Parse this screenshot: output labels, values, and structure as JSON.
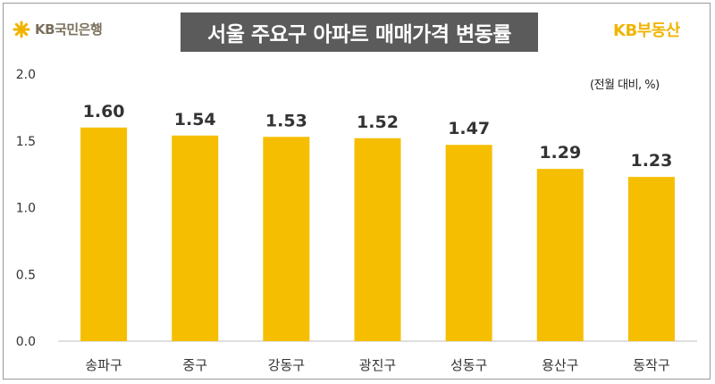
{
  "header": {
    "bank_logo_text": "KB국민은행",
    "title": "서울 주요구 아파트 매매가격 변동률",
    "brand_right": "KB부동산",
    "unit_note": "(전월 대비, %)"
  },
  "colors": {
    "bar": "#F6BE00",
    "title_bg": "#5B5B5B",
    "brand": "#F0B400",
    "axis": "#BFBFBF"
  },
  "icons": {
    "bank_logo": "kb-star-icon"
  },
  "chart_data": {
    "type": "bar",
    "title": "서울 주요구 아파트 매매가격 변동률",
    "unit": "(전월 대비, %)",
    "categories": [
      "송파구",
      "중구",
      "강동구",
      "광진구",
      "성동구",
      "용산구",
      "동작구"
    ],
    "values": [
      1.6,
      1.54,
      1.53,
      1.52,
      1.47,
      1.29,
      1.23
    ],
    "data_labels": [
      "1.60",
      "1.54",
      "1.53",
      "1.52",
      "1.47",
      "1.29",
      "1.23"
    ],
    "ylim": [
      0,
      2.0
    ],
    "yticks": [
      "0.0",
      "0.5",
      "1.0",
      "1.5",
      "2.0"
    ],
    "grid": false,
    "legend": "none"
  }
}
